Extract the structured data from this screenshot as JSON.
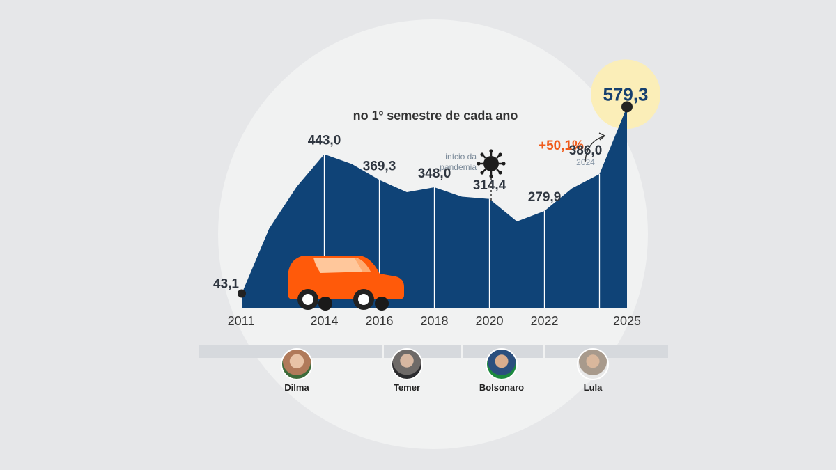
{
  "subtitle": "no 1º semestre de cada ano",
  "chart_data": {
    "type": "area",
    "subtitle": "no 1º semestre de cada ano",
    "x": [
      2011,
      2012,
      2013,
      2014,
      2015,
      2016,
      2017,
      2018,
      2019,
      2020,
      2021,
      2022,
      2023,
      2024,
      2025
    ],
    "values": [
      43.1,
      230,
      350,
      443.0,
      415,
      369.3,
      334,
      348.0,
      321,
      314.4,
      250,
      279.9,
      345,
      386.0,
      579.3
    ],
    "ylim": [
      0,
      600
    ],
    "xticks": [
      {
        "x": 2011,
        "label": "2011"
      },
      {
        "x": 2014,
        "label": "2014"
      },
      {
        "x": 2016,
        "label": "2016"
      },
      {
        "x": 2018,
        "label": "2018"
      },
      {
        "x": 2020,
        "label": "2020"
      },
      {
        "x": 2022,
        "label": "2022"
      },
      {
        "x": 2025,
        "label": "2025"
      }
    ],
    "dividers": [
      2014,
      2016,
      2018,
      2020,
      2022,
      2024
    ],
    "data_labels": [
      {
        "x": 2011,
        "value": 43.1,
        "text": "43,1"
      },
      {
        "x": 2014,
        "value": 443.0,
        "text": "443,0"
      },
      {
        "x": 2016,
        "value": 369.3,
        "text": "369,3"
      },
      {
        "x": 2018,
        "value": 348.0,
        "text": "348,0"
      },
      {
        "x": 2020,
        "value": 314.4,
        "text": "314,4"
      },
      {
        "x": 2022,
        "value": 279.9,
        "text": "279,9"
      },
      {
        "x": 2024,
        "value": 386.0,
        "text": "386,0",
        "sub": "2024"
      },
      {
        "x": 2025,
        "value": 579.3,
        "text": "579,3",
        "highlight": true
      }
    ],
    "change_label": "+50,1%",
    "pandemic_note": [
      "início da",
      "pandemia"
    ],
    "colors": {
      "area": "#0f4377",
      "highlight": "#fbeeb8",
      "accent": "#f05a1a",
      "car": "#ff5a0a"
    }
  },
  "presidents": [
    {
      "name": "Dilma",
      "color": "#b07a5a"
    },
    {
      "name": "Temer",
      "color": "#6e6a68"
    },
    {
      "name": "Bolsonaro",
      "color": "#3a5f9a"
    },
    {
      "name": "Lula",
      "color": "#a89a8c"
    }
  ]
}
